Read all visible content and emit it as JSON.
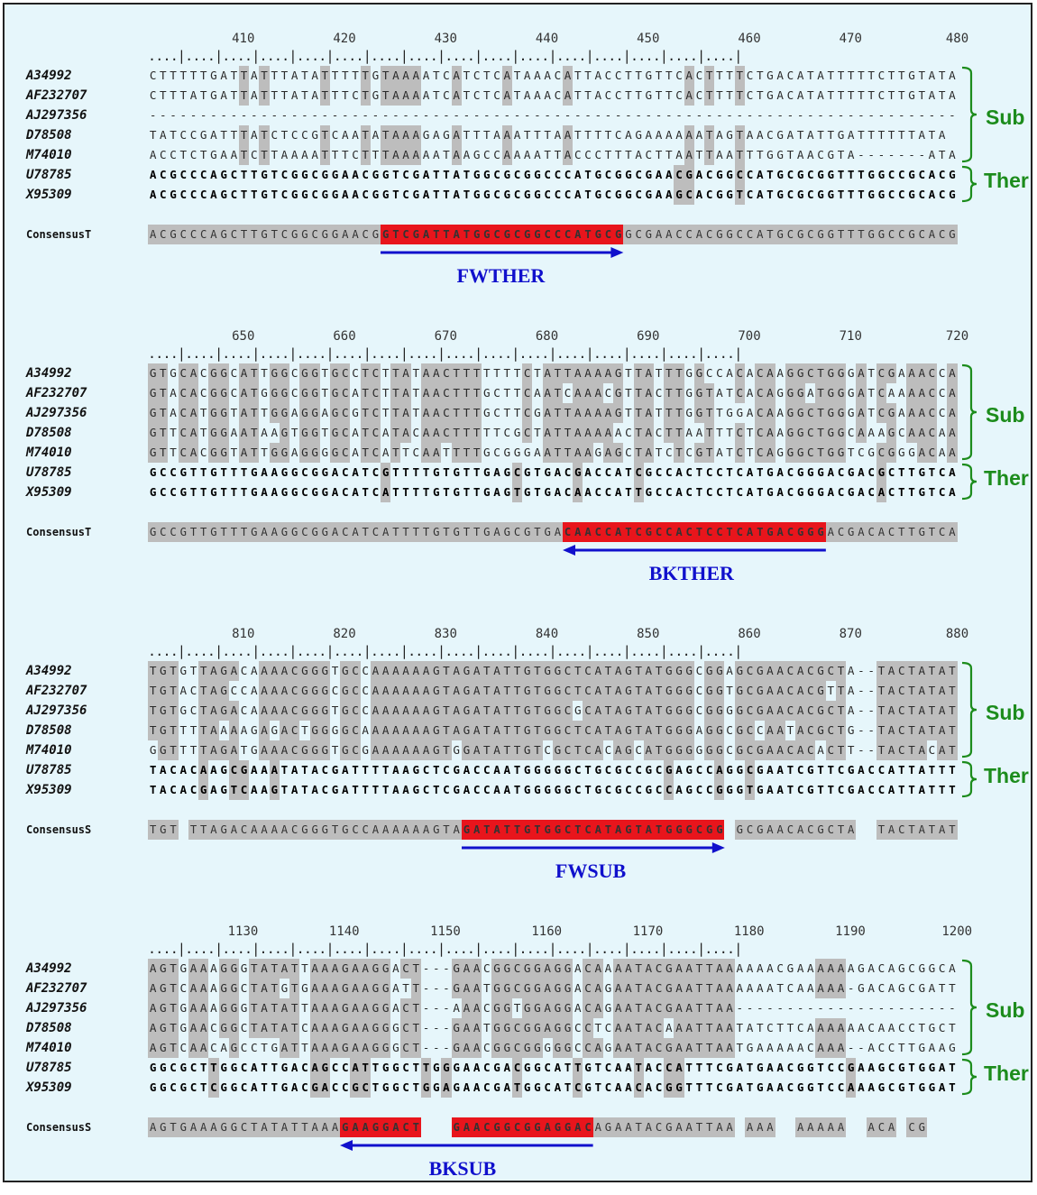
{
  "blocks": [
    {
      "id": "b1",
      "tick_numbers": [
        "410",
        "420",
        "430",
        "440",
        "450",
        "460",
        "470",
        "480"
      ],
      "ruler": "....|....|....|....|....|....|....|....|....|....|....|....|....|....|....|....|",
      "rows": [
        {
          "name": "A34992",
          "seq": "CTTTTTGATTATTTATATTTTTGTAAAATCATCTCATAAACATTACCTTGTTCACTTTTCTGACATATTTTTCTTGTATA",
          "style": "light"
        },
        {
          "name": "AF232707",
          "seq": "CTTTATGATTATTTATATTTCTGTAAAATCATCTCATAAACATTACCTTGTTCACTTTTCTGACATATTTTTCTTGTATA",
          "style": "light"
        },
        {
          "name": "AJ297356",
          "seq": "--------------------------------------------------------------------------------",
          "style": "light"
        },
        {
          "name": "D78508",
          "seq": "TATCCGATTTATCTCCGTCAATATAAAGAGATTTAAATTTAATTTTCAGAAAAAATAGTAACGATATTGATTTTTTATA",
          "style": "light"
        },
        {
          "name": "M74010",
          "seq": "ACCTCTGAATCTTAAAATTTCTTTAAAAATAAGCCAAAATTACCCTTTACTTAATTAATTTGGTAACGTA-------ATA",
          "style": "light"
        },
        {
          "name": "U78785",
          "seq": "ACGCCCAGCTTGTCGGCGGAACGGTCGATTATGGCGCGGCCCATGCGGCGAACGACGGCCATGCGCGGTTTGGCCGCACG",
          "style": "bold"
        },
        {
          "name": "X95309",
          "seq": "ACGCCCAGCTTGTCGGCGGAACGGTCGATTATGGCGCGGCCCATGCGGCGAAGCACGGTCATGCGCGGTTTGGCCGCACG",
          "style": "bold"
        }
      ],
      "groups": [
        {
          "label": "Sub"
        },
        {
          "label": "Ther"
        }
      ],
      "consensus": {
        "name": "ConsensusT",
        "seq": "ACGCCCAGCTTGTCGGCGGAACGGTCGATTATGGCGCGGCCCATGCGGCGAACCACGGCCATGCGCGGTTTGGCCGCACG"
      },
      "primer": {
        "label": "FWTHER",
        "direction": "forward",
        "start": 23,
        "end": 47
      }
    },
    {
      "id": "b2",
      "tick_numbers": [
        "650",
        "660",
        "670",
        "680",
        "690",
        "700",
        "710",
        "720"
      ],
      "ruler": "....|....|....|....|....|....|....|....|....|....|....|....|....|....|....|....|",
      "rows": [
        {
          "name": "A34992",
          "seq": "GTGCACGGCATTGGCGGTGCCTCTTATAACTTTTTTTCTATTAAAAGTTATTTGGCCACACAAGGCTGGGATCGAAACCA",
          "style": "light"
        },
        {
          "name": "AF232707",
          "seq": "GTACACGGCATGGGCGGTGCATCTTATAACTTTGCTTCAATCAAACGTTACTTGGTATCACAGGGATGGGATCAAAACCA",
          "style": "light"
        },
        {
          "name": "AJ297356",
          "seq": "GTACATGGTATTGGAGGAGCGTCTTATAACTTTGCTTCGATTAAAAGTTATTTGGTTGGACAAGGCTGGGATCGAAACCA",
          "style": "light"
        },
        {
          "name": "D78508",
          "seq": "GTTCATGGAATAAGTGGTGCATCATACAACTTTTTCGCTATTAAAAACTACTTAATTTCTCAAGGCTGGCAAAGCAACAA",
          "style": "light"
        },
        {
          "name": "M74010",
          "seq": "GTTCACGGTATTGGAGGGGCATCATTCAATTTTGCGGGAATTAAGAGCTATCTCGTATCTCAGGGCTGGTCGCGGGACAA",
          "style": "light"
        },
        {
          "name": "U78785",
          "seq": "GCCGTTGTTTGAAGGCGGACATCGTTTTGTGTTGAGCGTGACGACCATCGCCACTCCTCATGACGGGACGACGCTTGTCA",
          "style": "bold"
        },
        {
          "name": "X95309",
          "seq": "GCCGTTGTTTGAAGGCGGACATCATTTTGTGTTGAGTGTGACAACCATTGCCACTCCTCATGACGGGACGACACTTGTCA",
          "style": "bold"
        }
      ],
      "groups": [
        {
          "label": "Sub"
        },
        {
          "label": "Ther"
        }
      ],
      "consensus": {
        "name": "ConsensusT",
        "seq": "GCCGTTGTTTGAAGGCGGACATCATTTTGTGTTGAGCGTGACAACCATCGCCACTCCTCATGACGGGACGACACTTGTCA"
      },
      "primer": {
        "label": "BKTHER",
        "direction": "reverse",
        "start": 41,
        "end": 67
      }
    },
    {
      "id": "b3",
      "tick_numbers": [
        "810",
        "820",
        "830",
        "840",
        "850",
        "860",
        "870",
        "880"
      ],
      "ruler": "....|....|....|....|....|....|....|....|....|....|....|....|....|....|....|....|",
      "rows": [
        {
          "name": "A34992",
          "seq": "TGTGTTAGACAAAACGGGTGCCAAAAAAGTAGATATTGTGGCTCATAGTATGGGCGGAGCGAACACGCTA--TACTATAT",
          "style": "light"
        },
        {
          "name": "AF232707",
          "seq": "TGTACTAGCCAAAACGGGCGCCAAAAAAGTAGATATTGTGGCTCATAGTATGGGCGGTGCGAACACGTTA--TACTATAT",
          "style": "light"
        },
        {
          "name": "AJ297356",
          "seq": "TGTGCTAGACAAAACGGGTGCCAAAAAAGTAGATATTGTGGCGCATAGTATGGGCGGGGCGAACACGCTA--TACTATAT",
          "style": "light"
        },
        {
          "name": "D78508",
          "seq": "TGTTTTAAAAGAGACTGGGGCAAAAAAAGTAGATATTGTGGCTCATAGTATGGGAGGCGCCAATACGCTG--TACTATAT",
          "style": "light"
        },
        {
          "name": "M74010",
          "seq": "GGTTTTAGATGAAACGGGTGCGAAAAAAGTGGATATTGTCGCTCACAGCATGGGGGGCGCGAACACACTT--TACTACAT",
          "style": "light"
        },
        {
          "name": "U78785",
          "seq": "TACACAAGCGAAATATACGATTTTAAGCTCGACCAATGGGGGCTGCGCCGCGAGCCAGGCGAATCGTTCGACCATTATTT",
          "style": "bold"
        },
        {
          "name": "X95309",
          "seq": "TACACGAGTCAAGTATACGATTTTAAGCTCGACCAATGGGGGCTGCGCCGCCAGCCGGGTGAATCGTTCGACCATTATTT",
          "style": "bold"
        }
      ],
      "groups": [
        {
          "label": "Sub"
        },
        {
          "label": "Ther"
        }
      ],
      "consensus": {
        "name": "ConsensusS",
        "seq": "TGT_TTAGACAAAACGGGTGCCAAAAAAGTAGATATTGTGGCTCATAGTATGGGCGG_GCGAACACGCTA__TACTATAT"
      },
      "primer": {
        "label": "FWSUB",
        "direction": "forward",
        "start": 31,
        "end": 57
      }
    },
    {
      "id": "b4",
      "tick_numbers": [
        "1130",
        "1140",
        "1150",
        "1160",
        "1170",
        "1180",
        "1190",
        "1200"
      ],
      "ruler": "....|....|....|....|....|....|....|....|....|....|....|....|....|....|....|....|",
      "rows": [
        {
          "name": "A34992",
          "seq": "AGTGAAAGGGTATATTAAAGAAGGACT---GAACGGCGGAGGACAAAATACGAATTAAAAAACGAAAAAAGACAGCGGCA",
          "style": "light"
        },
        {
          "name": "AF232707",
          "seq": "AGTCAAAGGCTATGTGAAAGAAGGATT---GAATGGCGGAGGACAGAATACGAATTAAAAAATCAAAAA-GACAGCGATT",
          "style": "light"
        },
        {
          "name": "AJ297356",
          "seq": "AGTGAAAGGGTATATTAAAGAAGGACT---AAACGGTGGAGGACAGAATACGAATTAA----------------------",
          "style": "light"
        },
        {
          "name": "D78508",
          "seq": "AGTGAACGGCTATATCAAAGAAGGGCT---GAATGGCGGAGGCCTCAATACAAATTAATATCTTCAAAAAACAACCTGCT",
          "style": "light"
        },
        {
          "name": "M74010",
          "seq": "AGTCAACAGCCTGATTAAAGAAGGGCT---GAACGGCGGGGGCCAGAATACGAATTAATGAAAAACAAA--ACCTTGAAG",
          "style": "light"
        },
        {
          "name": "U78785",
          "seq": "GGCGCTTGGCATTGACAGCCATTGGCTTGGGAACGACGGCATTGTCAATACCATTTCGATGAACGGTCCGAAGCGTGGAT",
          "style": "bold"
        },
        {
          "name": "X95309",
          "seq": "GGCGCTCGGCATTGACGACCGCTGGCTGGAGAACGATGGCATCGTCAACACGGTTTCGATGAACGGTCCAAAGCGTGGAT",
          "style": "bold"
        }
      ],
      "groups": [
        {
          "label": "Sub"
        },
        {
          "label": "Ther"
        }
      ],
      "consensus": {
        "name": "ConsensusS",
        "seq": "AGTGAAAGGCTATATTAAAGAAGGACT___GAACGGCGGAGGACAGAATACGAATTAA_AAA__AAAAA__ACA_CG___"
      },
      "primer": {
        "label": "BKSUB",
        "direction": "reverse",
        "start": 19,
        "end": 44
      },
      "primer_gap": [
        27,
        30
      ]
    }
  ],
  "colors": {
    "primer_fill": "#e8151c",
    "shade": "#bdbdbd",
    "arrow": "#1010cc",
    "group_label": "#1c8c1c",
    "background": "#e6f6fb"
  }
}
